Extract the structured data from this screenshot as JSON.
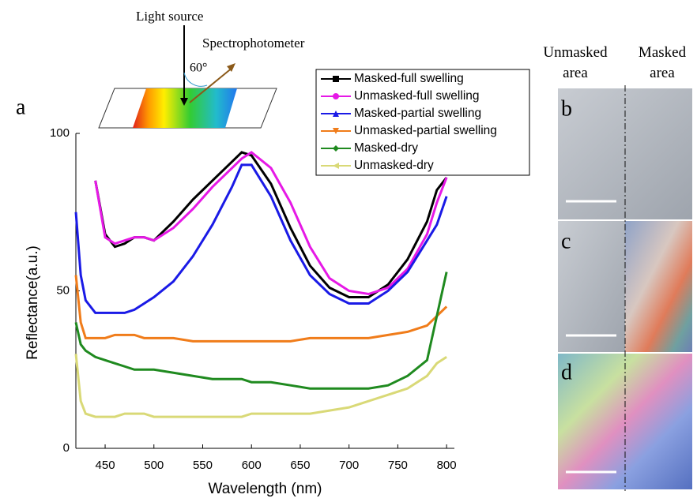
{
  "diagram": {
    "light_source": "Light source",
    "spectrophotometer": "Spectrophotometer",
    "angle": "60°"
  },
  "panels": {
    "a": "a",
    "b": "b",
    "c": "c",
    "d": "d",
    "unmasked_header": "Unmasked area",
    "masked_header": "Masked area"
  },
  "chart_data": {
    "type": "line",
    "x_label": "Wavelength (nm)",
    "y_label": "Reflectance(a.u.)",
    "x": [
      420,
      425,
      430,
      440,
      450,
      460,
      470,
      480,
      490,
      500,
      520,
      540,
      560,
      580,
      590,
      600,
      620,
      640,
      660,
      680,
      700,
      720,
      740,
      760,
      780,
      790,
      800
    ],
    "series": [
      {
        "name": "Masked-full swelling",
        "color": "#000000",
        "marker": "square",
        "values": [
          null,
          null,
          null,
          85,
          68,
          64,
          65,
          67,
          67,
          66,
          72,
          79,
          85,
          91,
          94,
          93,
          84,
          70,
          58,
          51,
          48,
          48,
          52,
          60,
          72,
          82,
          86
        ]
      },
      {
        "name": "Unmasked-full swelling",
        "color": "#e619e6",
        "marker": "circle",
        "values": [
          null,
          null,
          null,
          85,
          67,
          65,
          66,
          67,
          67,
          66,
          70,
          76,
          83,
          89,
          92,
          94,
          89,
          78,
          64,
          54,
          50,
          49,
          51,
          57,
          68,
          78,
          86
        ]
      },
      {
        "name": "Masked-partial swelling",
        "color": "#1a1ae6",
        "marker": "triangle",
        "values": [
          75,
          55,
          47,
          43,
          43,
          43,
          43,
          44,
          46,
          48,
          53,
          61,
          71,
          83,
          90,
          90,
          80,
          66,
          55,
          49,
          46,
          46,
          50,
          56,
          66,
          71,
          80
        ]
      },
      {
        "name": "Unmasked-partial swelling",
        "color": "#f07c1a",
        "marker": "triangle-down",
        "values": [
          55,
          40,
          35,
          35,
          35,
          36,
          36,
          36,
          35,
          35,
          35,
          34,
          34,
          34,
          34,
          34,
          34,
          34,
          35,
          35,
          35,
          35,
          36,
          37,
          39,
          42,
          45
        ]
      },
      {
        "name": "Masked-dry",
        "color": "#1f8a1f",
        "marker": "diamond",
        "values": [
          40,
          33,
          31,
          29,
          28,
          27,
          26,
          25,
          25,
          25,
          24,
          23,
          22,
          22,
          22,
          21,
          21,
          20,
          19,
          19,
          19,
          19,
          20,
          23,
          28,
          42,
          56
        ]
      },
      {
        "name": "Unmasked-dry",
        "color": "#d9d977",
        "marker": "triangle-left",
        "values": [
          30,
          15,
          11,
          10,
          10,
          10,
          11,
          11,
          11,
          10,
          10,
          10,
          10,
          10,
          10,
          11,
          11,
          11,
          11,
          12,
          13,
          15,
          17,
          19,
          23,
          27,
          29
        ]
      }
    ],
    "xlim": [
      420,
      808
    ],
    "ylim": [
      0,
      100
    ],
    "xticks": [
      450,
      500,
      550,
      600,
      650,
      700,
      750,
      800
    ],
    "yticks": [
      0,
      50,
      100
    ]
  }
}
